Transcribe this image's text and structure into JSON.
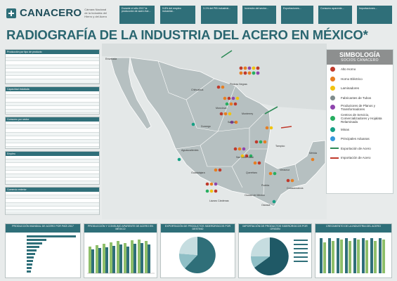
{
  "header": {
    "logo_text": "CANACERO",
    "logo_subtitle": "Cámara Nacional de la Industria del Hierro y del Acero",
    "stat_boxes": [
      "Durante el año 2017 la producción de acero fue...",
      "9.8% del empleo industrial...",
      "3.1% del PIB industrial...",
      "Inversión del sector...",
      "Exportaciones...",
      "Consumo aparente...",
      "Importaciones..."
    ]
  },
  "title": "RADIOGRAFÍA DE LA INDUSTRIA DEL ACERO EN MÉXICO*",
  "legend": {
    "title": "SIMBOLOGÍA",
    "subtitle": "SOCIOS CANACERO",
    "items": [
      {
        "label": "Alto Horno",
        "color": "#c0392b"
      },
      {
        "label": "Horno Eléctrico",
        "color": "#e67e22"
      },
      {
        "label": "Laminadores",
        "color": "#f1c40f"
      },
      {
        "label": "Fabricantes de Tubos",
        "color": "#7f8c8d"
      },
      {
        "label": "Productores de Planos y Transformadores",
        "color": "#8e44ad"
      },
      {
        "label": "Centros de Servicio, Comercializadores y Hojalata Relaminada",
        "color": "#27ae60"
      },
      {
        "label": "Minas",
        "color": "#16a085"
      },
      {
        "label": "Principales Aduanas",
        "color": "#3498db"
      },
      {
        "label": "Exportación de Acero",
        "color": "#2e8b57"
      },
      {
        "label": "Importación de Acero",
        "color": "#c0392b"
      }
    ]
  },
  "cities": [
    {
      "name": "Ensenada"
    },
    {
      "name": "Chihuahua"
    },
    {
      "name": "Monclova"
    },
    {
      "name": "Piedras Negras"
    },
    {
      "name": "Monterrey"
    },
    {
      "name": "Durango"
    },
    {
      "name": "Saltillo"
    },
    {
      "name": "Aguascalientes"
    },
    {
      "name": "Guadalajara"
    },
    {
      "name": "Lázaro Cárdenas"
    },
    {
      "name": "Ciudad de México"
    },
    {
      "name": "Querétaro"
    },
    {
      "name": "San Luis Potosí"
    },
    {
      "name": "Puebla"
    },
    {
      "name": "Veracruz"
    },
    {
      "name": "Tampico"
    },
    {
      "name": "Coatzacoalcos"
    },
    {
      "name": "Oaxaca"
    },
    {
      "name": "Mérida"
    }
  ],
  "left_tables": [
    {
      "head": "Producción por tipo de producto",
      "rows": 9
    },
    {
      "head": "Capacidad instalada",
      "rows": 8
    },
    {
      "head": "Consumo por sector",
      "rows": 9
    },
    {
      "head": "Empleo",
      "rows": 10
    },
    {
      "head": "Comercio exterior",
      "rows": 8
    }
  ],
  "bottom_panels": [
    {
      "title": "PRODUCCIÓN MUNDIAL DE ACERO POR PAÍS 2017"
    },
    {
      "title": "PRODUCCIÓN Y CONSUMO APARENTE DE ACERO EN MÉXICO"
    },
    {
      "title": "EXPORTACIÓN DE PRODUCTOS SIDERÚRGICOS POR DESTINO"
    },
    {
      "title": "IMPORTACIÓN DE PRODUCTOS SIDERÚRGICOS POR ORIGEN"
    },
    {
      "title": "CRECIMIENTO DE LA INDUSTRIA DEL ACERO"
    }
  ]
}
